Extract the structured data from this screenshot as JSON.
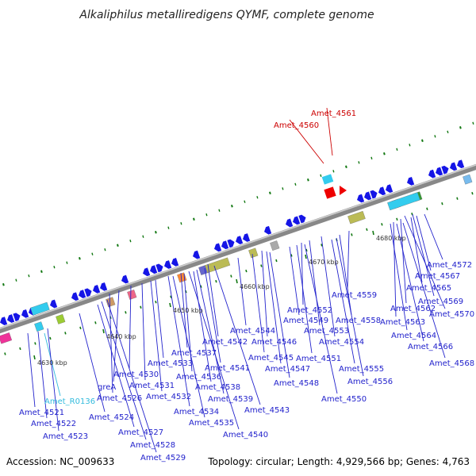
{
  "title": "Alkaliphilus metalliredigens QYMF, complete genome",
  "footer": {
    "accession": "Accession: NC_009633",
    "topology": "Topology: circular; Length: 4,929,566 bp; Genes: 4,763"
  },
  "colors": {
    "backbone": "#999999",
    "gene_blue": "#1515e6",
    "label_blue": "#2222cc",
    "label_red": "#cc0000",
    "label_cyan": "#33bbdd",
    "tick_green": "#117711"
  },
  "kbp_marks": [
    "4630 kbp",
    "4640 kbp",
    "4650 kbp",
    "4660 kbp",
    "4670 kbp",
    "4680 kbp"
  ],
  "labels": [
    {
      "text": "Amet_4561",
      "color": "red"
    },
    {
      "text": "Amet_4560",
      "color": "red"
    },
    {
      "text": "Amet_4572",
      "color": "blue"
    },
    {
      "text": "Amet_4567",
      "color": "blue"
    },
    {
      "text": "Amet_4565",
      "color": "blue"
    },
    {
      "text": "Amet_4569",
      "color": "blue"
    },
    {
      "text": "Amet_4562",
      "color": "blue"
    },
    {
      "text": "Amet_4570",
      "color": "blue"
    },
    {
      "text": "Amet_4563",
      "color": "blue"
    },
    {
      "text": "Amet_4564",
      "color": "blue"
    },
    {
      "text": "Amet_4566",
      "color": "blue"
    },
    {
      "text": "Amet_4568",
      "color": "blue"
    },
    {
      "text": "Amet_4559",
      "color": "blue"
    },
    {
      "text": "Amet_4552",
      "color": "blue"
    },
    {
      "text": "Amet_4558",
      "color": "blue"
    },
    {
      "text": "Amet_4549",
      "color": "blue"
    },
    {
      "text": "Amet_4553",
      "color": "blue"
    },
    {
      "text": "Amet_4544",
      "color": "blue"
    },
    {
      "text": "Amet_4554",
      "color": "blue"
    },
    {
      "text": "Amet_4546",
      "color": "blue"
    },
    {
      "text": "Amet_4542",
      "color": "blue"
    },
    {
      "text": "Amet_4537",
      "color": "blue"
    },
    {
      "text": "Amet_4545",
      "color": "blue"
    },
    {
      "text": "Amet_4551",
      "color": "blue"
    },
    {
      "text": "Amet_4533",
      "color": "blue"
    },
    {
      "text": "Amet_4547",
      "color": "blue"
    },
    {
      "text": "Amet_4555",
      "color": "blue"
    },
    {
      "text": "Amet_4541",
      "color": "blue"
    },
    {
      "text": "Amet_4530",
      "color": "blue"
    },
    {
      "text": "Amet_4536",
      "color": "blue"
    },
    {
      "text": "Amet_4556",
      "color": "blue"
    },
    {
      "text": "Amet_4548",
      "color": "blue"
    },
    {
      "text": "Amet_4531",
      "color": "blue"
    },
    {
      "text": "Amet_4538",
      "color": "blue"
    },
    {
      "text": "greA",
      "color": "blue"
    },
    {
      "text": "Amet_4532",
      "color": "blue"
    },
    {
      "text": "Amet_4550",
      "color": "blue"
    },
    {
      "text": "Amet_4539",
      "color": "blue"
    },
    {
      "text": "Amet_4526",
      "color": "blue"
    },
    {
      "text": "Amet_R0136",
      "color": "cyan"
    },
    {
      "text": "Amet_4543",
      "color": "blue"
    },
    {
      "text": "Amet_4534",
      "color": "blue"
    },
    {
      "text": "Amet_4521",
      "color": "blue"
    },
    {
      "text": "Amet_4524",
      "color": "blue"
    },
    {
      "text": "Amet_4535",
      "color": "blue"
    },
    {
      "text": "Amet_4522",
      "color": "blue"
    },
    {
      "text": "Amet_4527",
      "color": "blue"
    },
    {
      "text": "Amet_4540",
      "color": "blue"
    },
    {
      "text": "Amet_4523",
      "color": "blue"
    },
    {
      "text": "Amet_4528",
      "color": "blue"
    },
    {
      "text": "Amet_4529",
      "color": "blue"
    }
  ]
}
